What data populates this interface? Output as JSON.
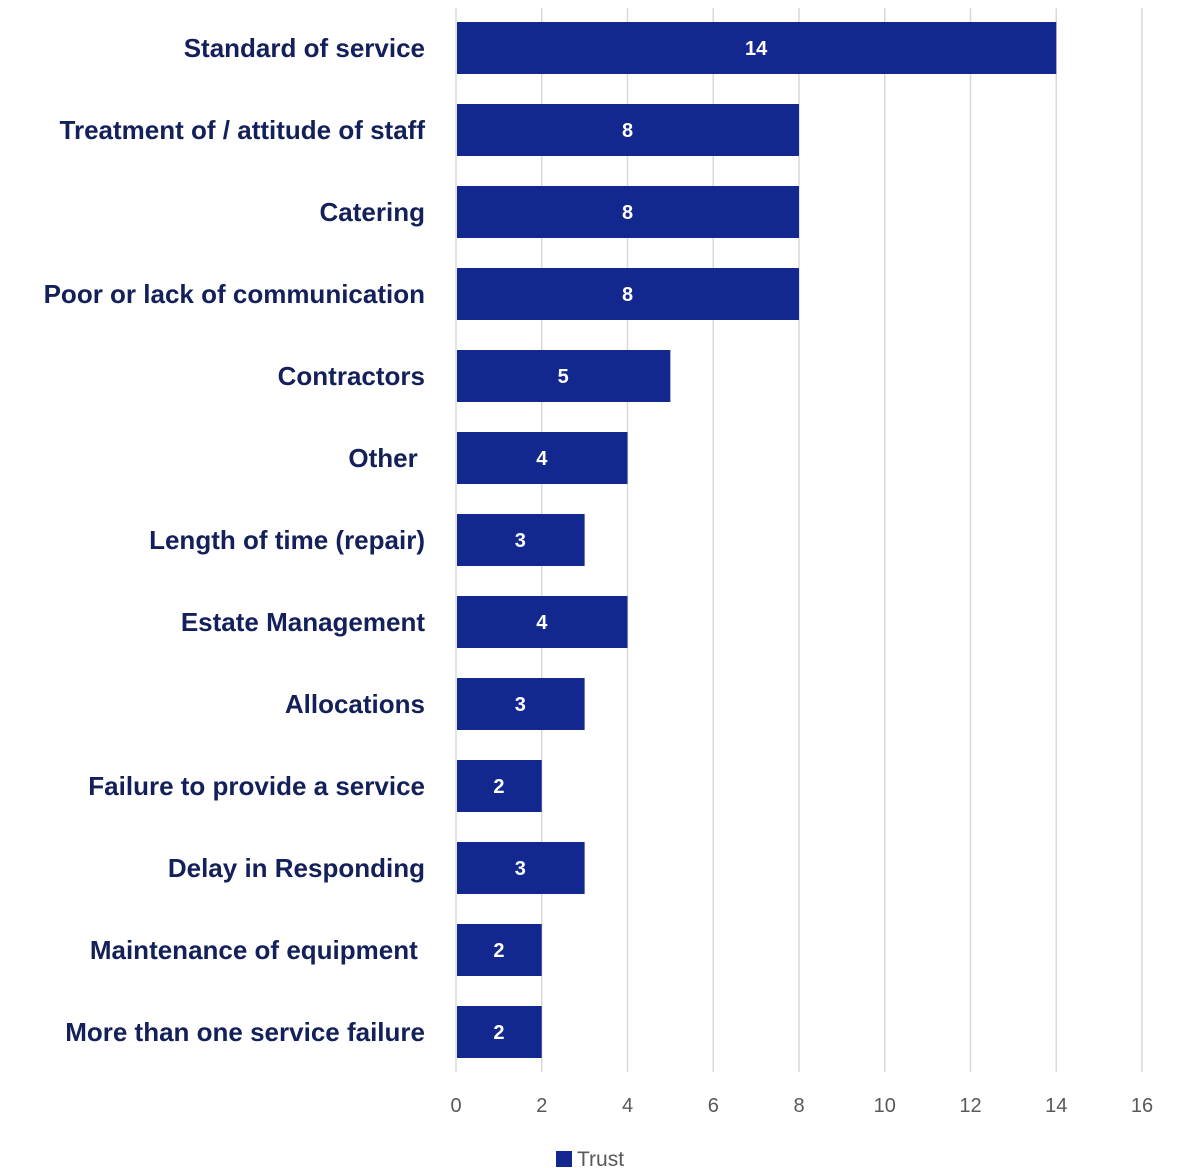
{
  "chart_data": {
    "type": "bar",
    "orientation": "horizontal",
    "categories": [
      "Standard of service",
      "Treatment of / attitude of staff",
      "Catering",
      "Poor or lack of communication",
      "Contractors",
      "Other ",
      "Length of time (repair)",
      "Estate Management",
      "Allocations",
      "Failure to provide a service",
      "Delay in Responding",
      "Maintenance of equipment ",
      "More than one service failure"
    ],
    "series": [
      {
        "name": "Trust",
        "values": [
          14,
          8,
          8,
          8,
          5,
          4,
          3,
          4,
          3,
          2,
          3,
          2,
          2
        ],
        "color": "#13288f"
      }
    ],
    "xlim": [
      0,
      16
    ],
    "xticks": [
      0,
      2,
      4,
      6,
      8,
      10,
      12,
      14,
      16
    ],
    "grid": "vertical",
    "legend_position": "bottom",
    "data_labels": true,
    "colors": {
      "category_text": "#13205a",
      "gridline": "#d9d9d9",
      "tick_text": "#595959",
      "bar_label": "#ffffff"
    }
  }
}
